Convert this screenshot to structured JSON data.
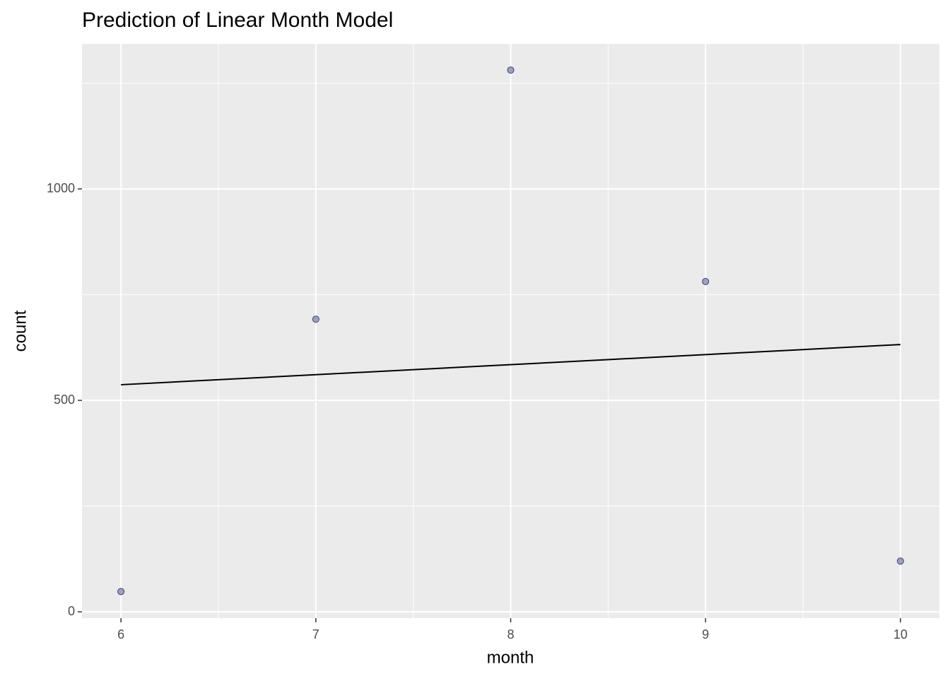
{
  "chart_data": {
    "type": "scatter",
    "title": "Prediction of Linear Month Model",
    "x_label": "month",
    "y_label": "count",
    "x": [
      6,
      7,
      8,
      9,
      10
    ],
    "values": [
      48,
      692,
      1281,
      781,
      120
    ],
    "color": "#9498c0",
    "line": {
      "x": [
        6,
        10
      ],
      "values": [
        537,
        632
      ],
      "color": "#000000"
    },
    "xlim": [
      5.8,
      10.2
    ],
    "xticks": [
      6,
      7,
      8,
      9,
      10
    ],
    "ylim": [
      -15,
      1343
    ],
    "yticks": [
      0,
      500,
      1000
    ],
    "grid": true
  }
}
